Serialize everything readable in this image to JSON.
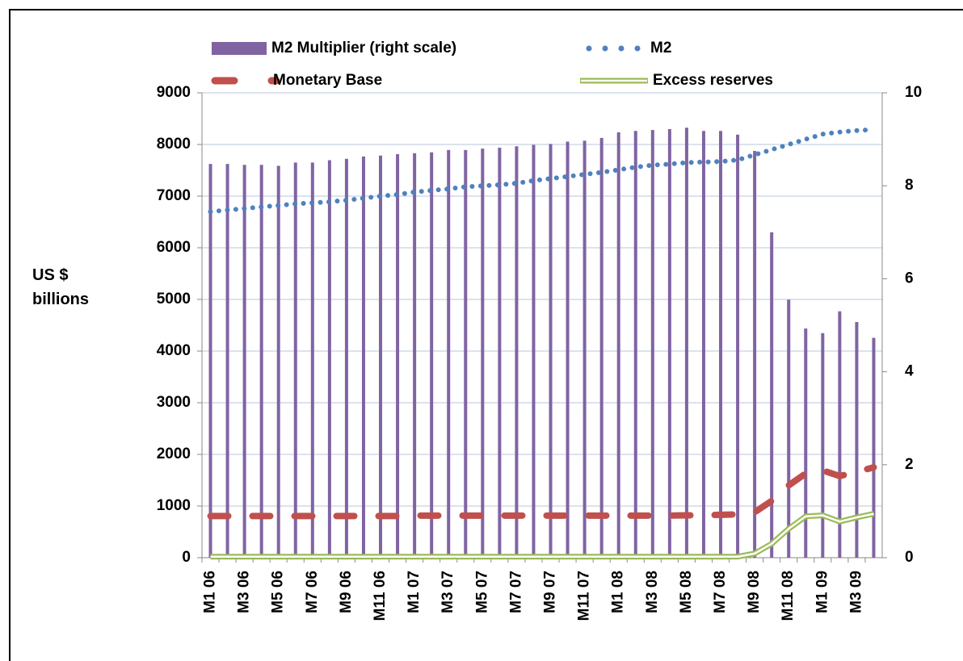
{
  "chart_data": {
    "type": "bar",
    "y_label": "US $ billions",
    "categories": [
      "M1 06",
      null,
      "M3 06",
      null,
      "M5 06",
      null,
      "M7 06",
      null,
      "M9 06",
      null,
      "M11 06",
      null,
      "M1 07",
      null,
      "M3 07",
      null,
      "M5 07",
      null,
      "M7 07",
      null,
      "M9 07",
      null,
      "M11 07",
      null,
      "M1 08",
      null,
      "M3 08",
      null,
      "M5 08",
      null,
      "M7 08",
      null,
      "M9 08",
      null,
      "M11 08",
      null,
      "M1 09",
      null,
      "M3 09",
      null
    ],
    "ylim": [
      0,
      9000
    ],
    "yticks": [
      0,
      1000,
      2000,
      3000,
      4000,
      5000,
      6000,
      7000,
      8000,
      9000
    ],
    "y2lim": [
      0,
      10
    ],
    "y2ticks": [
      0,
      2,
      4,
      6,
      8,
      10
    ],
    "grid": true,
    "legend_position": "top",
    "series": [
      {
        "name": "M2 Multiplier (right scale)",
        "type": "bar",
        "axis": "y2",
        "color": "#8064a2",
        "values": [
          8.47,
          8.47,
          8.45,
          8.45,
          8.43,
          8.5,
          8.5,
          8.55,
          8.58,
          8.63,
          8.65,
          8.68,
          8.7,
          8.72,
          8.77,
          8.77,
          8.8,
          8.82,
          8.85,
          8.88,
          8.9,
          8.95,
          8.97,
          9.03,
          9.15,
          9.18,
          9.2,
          9.22,
          9.25,
          9.18,
          9.18,
          9.1,
          8.75,
          7.0,
          5.55,
          4.93,
          4.83,
          5.3,
          5.07,
          4.73
        ]
      },
      {
        "name": "M2",
        "type": "dotted",
        "color": "#4f81bd",
        "values": [
          6700,
          6730,
          6760,
          6790,
          6820,
          6850,
          6870,
          6890,
          6920,
          6960,
          7000,
          7030,
          7080,
          7110,
          7140,
          7180,
          7200,
          7220,
          7250,
          7300,
          7340,
          7380,
          7420,
          7460,
          7510,
          7560,
          7600,
          7620,
          7650,
          7660,
          7670,
          7700,
          7800,
          7900,
          8000,
          8100,
          8200,
          8240,
          8270,
          8290
        ]
      },
      {
        "name": "Monetary Base",
        "type": "dashed",
        "color": "#c0504d",
        "values": [
          806,
          806,
          806,
          806,
          806,
          806,
          806,
          806,
          806,
          806,
          806,
          806,
          815,
          815,
          815,
          815,
          815,
          815,
          815,
          815,
          815,
          815,
          815,
          815,
          815,
          815,
          815,
          815,
          820,
          825,
          830,
          840,
          880,
          1100,
          1400,
          1630,
          1690,
          1580,
          1660,
          1750
        ]
      },
      {
        "name": "Excess reserves",
        "type": "double",
        "color": "#9bbb59",
        "values": [
          20,
          20,
          20,
          20,
          20,
          20,
          20,
          20,
          20,
          20,
          20,
          20,
          20,
          20,
          20,
          20,
          20,
          20,
          20,
          20,
          20,
          20,
          20,
          20,
          20,
          20,
          20,
          20,
          20,
          20,
          20,
          20,
          80,
          270,
          560,
          800,
          820,
          700,
          780,
          850
        ]
      }
    ]
  }
}
